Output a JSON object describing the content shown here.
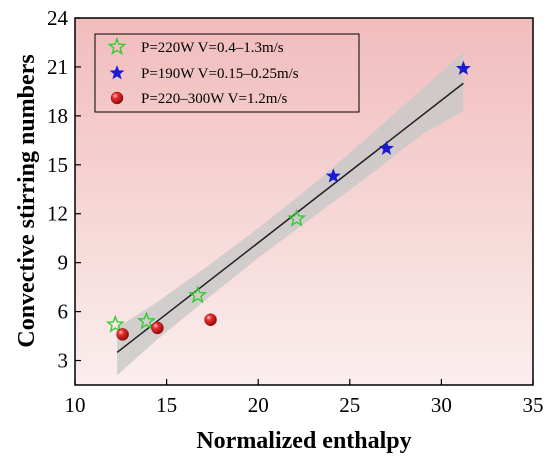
{
  "chart_data": {
    "type": "scatter",
    "title": "",
    "xlabel": "Normalized enthalpy",
    "ylabel": "Convective stirring numbers",
    "xlim": [
      10,
      35
    ],
    "ylim": [
      1.5,
      24
    ],
    "x_ticks": [
      "10",
      "15",
      "20",
      "25",
      "30",
      "35"
    ],
    "y_ticks": [
      "3",
      "6",
      "9",
      "12",
      "15",
      "18",
      "21",
      "24"
    ],
    "x_tick_values": [
      10,
      15,
      20,
      25,
      30,
      35
    ],
    "y_tick_values": [
      3,
      6,
      9,
      12,
      15,
      18,
      21,
      24
    ],
    "grid": false,
    "legend_position": "top-left",
    "background_gradient": [
      "#f1bcbc",
      "#fbeeee"
    ],
    "series": [
      {
        "name": "P=220W V=0.4–1.3m/s",
        "marker": "hollow-star",
        "color": "#33cc33",
        "points": [
          [
            12.2,
            5.2
          ],
          [
            13.9,
            5.4
          ],
          [
            16.7,
            7.0
          ],
          [
            22.1,
            11.7
          ]
        ]
      },
      {
        "name": "P=190W V=0.15–0.25m/s",
        "marker": "filled-star",
        "color": "#1a1ad6",
        "points": [
          [
            24.1,
            14.3
          ],
          [
            27.0,
            16.0
          ],
          [
            31.2,
            20.9
          ]
        ]
      },
      {
        "name": "P=220–300W V=1.2m/s",
        "marker": "sphere",
        "color": "#e21b1b",
        "points": [
          [
            12.6,
            4.6
          ],
          [
            14.5,
            5.0
          ],
          [
            17.4,
            5.5
          ]
        ]
      }
    ],
    "fit_line": {
      "x": [
        12.3,
        31.2
      ],
      "y": [
        3.5,
        20.0
      ],
      "color": "#222222"
    },
    "confidence_band": {
      "color": "#c8c8c8",
      "x": [
        12.3,
        14.5,
        17.0,
        20.0,
        23.0,
        26.0,
        29.0,
        31.2
      ],
      "upper": [
        5.0,
        6.6,
        8.6,
        11.1,
        13.8,
        16.7,
        19.7,
        21.9
      ],
      "lower": [
        2.1,
        4.3,
        6.6,
        9.3,
        11.8,
        14.3,
        16.9,
        18.3
      ]
    }
  }
}
